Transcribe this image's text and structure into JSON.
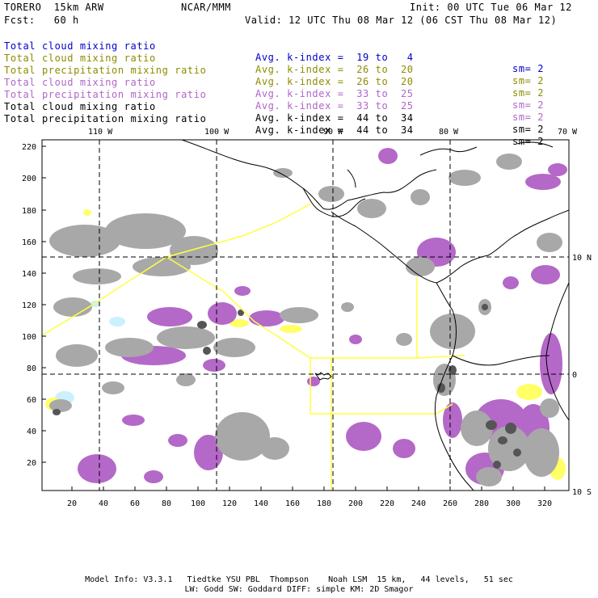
{
  "header": {
    "model": "TORERO  15km ARW",
    "center": "NCAR/MMM",
    "init": "Init: 00 UTC Tue 06 Mar 12",
    "fcst": "Fcst:   60 h",
    "valid": "Valid: 12 UTC Thu 08 Mar 12 (06 CST Thu 08 Mar 12)"
  },
  "legend": [
    {
      "field": "Total cloud mixing ratio",
      "kindex": "Avg. k-index =  19 to   4",
      "sm": "sm= 2",
      "color": "#0000cc"
    },
    {
      "field": "Total cloud mixing ratio",
      "kindex": "Avg. k-index =  26 to  20",
      "sm": "sm= 2",
      "color": "#8c8c00"
    },
    {
      "field": "Total precipitation mixing ratio",
      "kindex": "Avg. k-index =  26 to  20",
      "sm": "sm= 2",
      "color": "#8c8c00"
    },
    {
      "field": "Total cloud mixing ratio",
      "kindex": "Avg. k-index =  33 to  25",
      "sm": "sm= 2",
      "color": "#b066c8"
    },
    {
      "field": "Total precipitation mixing ratio",
      "kindex": "Avg. k-index =  33 to  25",
      "sm": "sm= 2",
      "color": "#b066c8"
    },
    {
      "field": "Total cloud mixing ratio",
      "kindex": "Avg. k-index =  44 to  34",
      "sm": "sm= 2",
      "color": "#000000"
    },
    {
      "field": "Total precipitation mixing ratio",
      "kindex": "Avg. k-index =  44 to  34",
      "sm": "sm= 2",
      "color": "#000000"
    }
  ],
  "map": {
    "lon_labels": [
      "110 W",
      "100 W",
      "90 W",
      "80 W",
      "70 W"
    ],
    "lat_labels": [
      "10 N",
      "0",
      "10 S"
    ],
    "y_ticks": [
      "220",
      "200",
      "180",
      "160",
      "140",
      "120",
      "100",
      "80",
      "60",
      "40",
      "20"
    ],
    "x_ticks": [
      "20",
      "40",
      "60",
      "80",
      "100",
      "120",
      "140",
      "160",
      "180",
      "200",
      "220",
      "240",
      "260",
      "280",
      "300",
      "320"
    ],
    "colors": {
      "grey_field": "#a8a8a8",
      "purple_field": "#b468c8",
      "yellow_field": "#ffff66",
      "light_blue_field": "#ccf0ff",
      "boundary": "#ffff40",
      "coast": "#000000"
    }
  },
  "footer": {
    "line1": "Model Info: V3.3.1   Tiedtke YSU PBL  Thompson    Noah LSM  15 km,   44 levels,   51 sec",
    "line2": "LW: Godd SW: Goddard DIFF: simple KM: 2D Smagor"
  }
}
